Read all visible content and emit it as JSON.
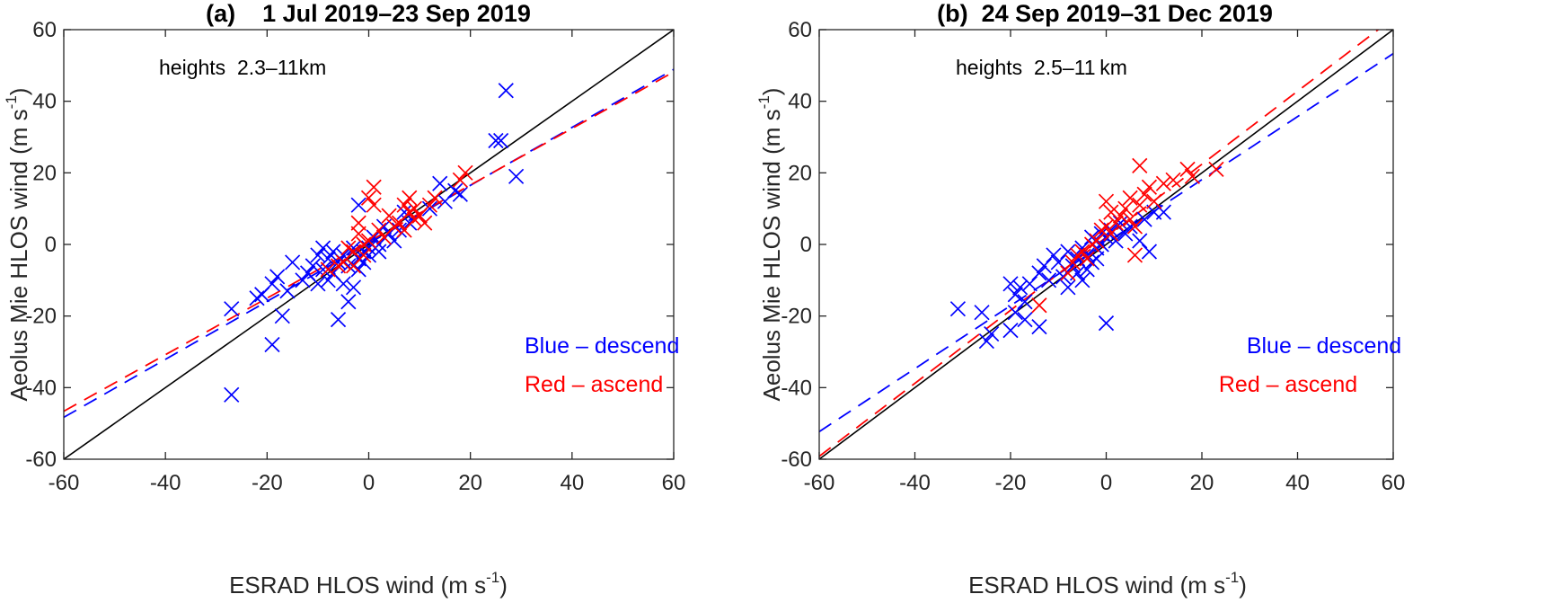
{
  "colors": {
    "descend": "#0000ff",
    "ascend": "#ff0000",
    "reference": "#000000",
    "axis": "#262626"
  },
  "chart_data": [
    {
      "type": "scatter",
      "panel": "a",
      "title": "(a)    1 Jul 2019–23 Sep 2019",
      "xlabel": "ESRAD HLOS wind (m s",
      "xlabel_sup": "-1",
      "xlabel_end": ")",
      "ylabel": "Aeolus Mie HLOS wind (m s",
      "ylabel_sup": "-1",
      "ylabel_end": ")",
      "xlim": [
        -60,
        60
      ],
      "ylim": [
        -60,
        60
      ],
      "xticks": [
        -60,
        -40,
        -20,
        0,
        20,
        40,
        60
      ],
      "yticks": [
        -60,
        -40,
        -20,
        0,
        20,
        40,
        60
      ],
      "annotation": "heights  2.3–11km",
      "legend": [
        {
          "label": "Blue – descend",
          "series": "descend"
        },
        {
          "label": "Red – ascend",
          "series": "ascend"
        }
      ],
      "legend_position": "lower-right",
      "reference_line": {
        "slope": 1,
        "intercept": 0,
        "style": "solid"
      },
      "fits": [
        {
          "series": "descend",
          "slope": 0.81,
          "intercept": 0.3,
          "style": "dashed"
        },
        {
          "series": "ascend",
          "slope": 0.79,
          "intercept": 0.8,
          "style": "dashed"
        }
      ],
      "series": [
        {
          "name": "descend",
          "points": [
            [
              -27,
              -42
            ],
            [
              -27,
              -18
            ],
            [
              -22,
              -15
            ],
            [
              -21,
              -14
            ],
            [
              -19,
              -28
            ],
            [
              -19,
              -11
            ],
            [
              -18,
              -9
            ],
            [
              -17,
              -20
            ],
            [
              -16,
              -13
            ],
            [
              -15,
              -5
            ],
            [
              -13,
              -10
            ],
            [
              -12,
              -8
            ],
            [
              -11,
              -6
            ],
            [
              -10,
              -3
            ],
            [
              -10,
              -11
            ],
            [
              -9,
              -1
            ],
            [
              -9,
              -7
            ],
            [
              -8,
              -4
            ],
            [
              -8,
              -10
            ],
            [
              -7,
              -2
            ],
            [
              -7,
              -8
            ],
            [
              -6,
              -21
            ],
            [
              -6,
              -5
            ],
            [
              -5,
              -3
            ],
            [
              -5,
              -11
            ],
            [
              -4,
              -16
            ],
            [
              -4,
              -6
            ],
            [
              -3,
              -12
            ],
            [
              -3,
              -1
            ],
            [
              -2,
              -4
            ],
            [
              -2,
              11
            ],
            [
              -2,
              -7
            ],
            [
              -1,
              -2
            ],
            [
              -1,
              -5
            ],
            [
              0,
              -3
            ],
            [
              0,
              -1
            ],
            [
              1,
              2
            ],
            [
              2,
              -2
            ],
            [
              2,
              0
            ],
            [
              3,
              5
            ],
            [
              4,
              3
            ],
            [
              5,
              1
            ],
            [
              6,
              4
            ],
            [
              7,
              9
            ],
            [
              8,
              6
            ],
            [
              10,
              8
            ],
            [
              12,
              10
            ],
            [
              14,
              17
            ],
            [
              15,
              12
            ],
            [
              17,
              15
            ],
            [
              18,
              14
            ],
            [
              25,
              29
            ],
            [
              26,
              29
            ],
            [
              27,
              43
            ],
            [
              29,
              19
            ]
          ]
        },
        {
          "name": "ascend",
          "points": [
            [
              -8,
              -7
            ],
            [
              -6,
              -6
            ],
            [
              -5,
              -5
            ],
            [
              -4,
              -1
            ],
            [
              -3,
              -2
            ],
            [
              -3,
              -6
            ],
            [
              -2,
              3
            ],
            [
              -2,
              6
            ],
            [
              -1,
              -3
            ],
            [
              -1,
              0
            ],
            [
              0,
              1
            ],
            [
              0,
              13
            ],
            [
              1,
              11
            ],
            [
              1,
              16
            ],
            [
              2,
              4
            ],
            [
              3,
              2
            ],
            [
              4,
              8
            ],
            [
              5,
              5
            ],
            [
              6,
              6
            ],
            [
              7,
              4
            ],
            [
              7,
              11
            ],
            [
              8,
              9
            ],
            [
              8,
              13
            ],
            [
              9,
              7
            ],
            [
              9,
              10
            ],
            [
              10,
              8
            ],
            [
              11,
              6
            ],
            [
              12,
              11
            ],
            [
              13,
              13
            ],
            [
              18,
              18
            ],
            [
              19,
              20
            ]
          ]
        }
      ]
    },
    {
      "type": "scatter",
      "panel": "b",
      "title": "(b)  24 Sep 2019–31 Dec 2019",
      "xlabel": "ESRAD HLOS wind (m s",
      "xlabel_sup": "-1",
      "xlabel_end": ")",
      "ylabel": "Aeolus Mie HLOS wind (m s",
      "ylabel_sup": "-1",
      "ylabel_end": ")",
      "xlim": [
        -60,
        60
      ],
      "ylim": [
        -60,
        60
      ],
      "xticks": [
        -60,
        -40,
        -20,
        0,
        20,
        40,
        60
      ],
      "yticks": [
        -60,
        -40,
        -20,
        0,
        20,
        40,
        60
      ],
      "annotation": "heights  2.5–11 km",
      "legend": [
        {
          "label": "Blue – descend",
          "series": "descend"
        },
        {
          "label": "Red – ascend",
          "series": "ascend"
        }
      ],
      "legend_position": "lower-right",
      "reference_line": {
        "slope": 1,
        "intercept": 0,
        "style": "solid"
      },
      "fits": [
        {
          "series": "descend",
          "slope": 0.88,
          "intercept": 0.5,
          "style": "dashed"
        },
        {
          "series": "ascend",
          "slope": 1.02,
          "intercept": 2.0,
          "style": "dashed"
        }
      ],
      "series": [
        {
          "name": "descend",
          "points": [
            [
              -31,
              -18
            ],
            [
              -26,
              -19
            ],
            [
              -25,
              -27
            ],
            [
              -24,
              -25
            ],
            [
              -20,
              -11
            ],
            [
              -20,
              -24
            ],
            [
              -19,
              -14
            ],
            [
              -19,
              -19
            ],
            [
              -18,
              -12
            ],
            [
              -17,
              -16
            ],
            [
              -17,
              -21
            ],
            [
              -16,
              -11
            ],
            [
              -14,
              -8
            ],
            [
              -14,
              -23
            ],
            [
              -13,
              -6
            ],
            [
              -12,
              -10
            ],
            [
              -11,
              -3
            ],
            [
              -10,
              -5
            ],
            [
              -9,
              -9
            ],
            [
              -8,
              -2
            ],
            [
              -8,
              -12
            ],
            [
              -7,
              -6
            ],
            [
              -6,
              -4
            ],
            [
              -6,
              -8
            ],
            [
              -5,
              -1
            ],
            [
              -5,
              -10
            ],
            [
              -4,
              -3
            ],
            [
              -4,
              -7
            ],
            [
              -3,
              2
            ],
            [
              -3,
              -5
            ],
            [
              -2,
              -1
            ],
            [
              -2,
              -4
            ],
            [
              -1,
              0
            ],
            [
              -1,
              3
            ],
            [
              0,
              -22
            ],
            [
              0,
              2
            ],
            [
              1,
              4
            ],
            [
              2,
              1
            ],
            [
              3,
              6
            ],
            [
              4,
              3
            ],
            [
              5,
              5
            ],
            [
              7,
              1
            ],
            [
              8,
              7
            ],
            [
              9,
              -2
            ],
            [
              10,
              9
            ],
            [
              12,
              9
            ]
          ]
        },
        {
          "name": "ascend",
          "points": [
            [
              -14,
              -17
            ],
            [
              -8,
              -8
            ],
            [
              -7,
              -5
            ],
            [
              -6,
              -3
            ],
            [
              -5,
              -2
            ],
            [
              -4,
              -4
            ],
            [
              -3,
              0
            ],
            [
              -2,
              1
            ],
            [
              -1,
              4
            ],
            [
              0,
              5
            ],
            [
              0,
              12
            ],
            [
              1,
              3
            ],
            [
              1,
              9
            ],
            [
              2,
              6
            ],
            [
              3,
              8
            ],
            [
              4,
              10
            ],
            [
              5,
              13
            ],
            [
              5,
              7
            ],
            [
              6,
              -3
            ],
            [
              6,
              5
            ],
            [
              7,
              22
            ],
            [
              7,
              11
            ],
            [
              8,
              14
            ],
            [
              9,
              16
            ],
            [
              10,
              12
            ],
            [
              12,
              17
            ],
            [
              14,
              18
            ],
            [
              17,
              21
            ],
            [
              18,
              19
            ],
            [
              23,
              21
            ]
          ]
        }
      ]
    }
  ]
}
